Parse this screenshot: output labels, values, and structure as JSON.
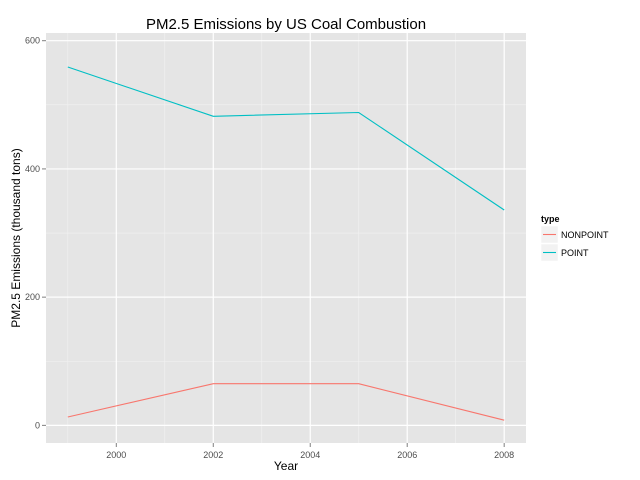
{
  "chart_data": {
    "type": "line",
    "title": "PM2.5 Emissions by US Coal Combustion",
    "xlabel": "Year",
    "ylabel": "PM2.5 Emissions (thousand tons)",
    "x": [
      1999,
      2002,
      2005,
      2008
    ],
    "xlim": [
      1998.55,
      2008.45
    ],
    "ylim": [
      -27.5,
      612
    ],
    "x_ticks": [
      2000,
      2002,
      2004,
      2006,
      2008
    ],
    "y_ticks": [
      0,
      200,
      400,
      600
    ],
    "grid": true,
    "legend": {
      "title": "type",
      "position": "right"
    },
    "series": [
      {
        "name": "NONPOINT",
        "color": "#F8766D",
        "values": [
          13,
          65,
          65,
          8
        ]
      },
      {
        "name": "POINT",
        "color": "#00BFC4",
        "values": [
          559,
          482,
          488,
          336
        ]
      }
    ]
  }
}
